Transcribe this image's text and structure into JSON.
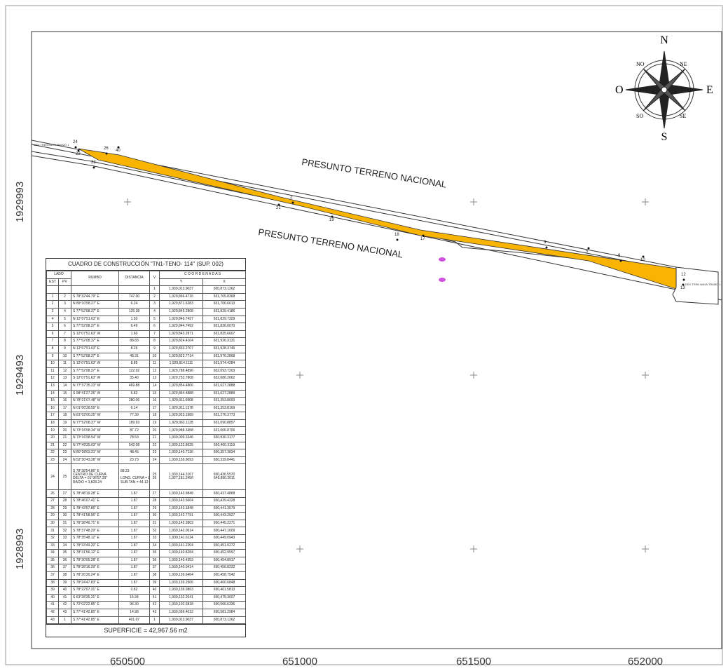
{
  "map": {
    "x_labels": [
      "650500",
      "651000",
      "651500",
      "652000"
    ],
    "y_labels": [
      "1929993",
      "1929493",
      "1928993"
    ],
    "area_labels": [
      "PRESUNTO TERRENO NACIONAL",
      "PRESUNTO TERRENO NACIONAL"
    ],
    "end_labels": [
      "DEV TREN MAYA TRAMO 1",
      "DEV TREN MAYA TRAMO 1"
    ],
    "vertex_labels": [
      "24",
      "23",
      "26",
      "40",
      "22",
      "21",
      "2",
      "19",
      "18",
      "17",
      "3",
      "5",
      "9",
      "10",
      "12",
      "13"
    ],
    "compass": {
      "n": "N",
      "s": "S",
      "e": "E",
      "o": "O",
      "ne": "NE",
      "no": "NO",
      "se": "SE",
      "so": "SO"
    }
  },
  "table": {
    "title": "CUADRO DE CONSTRUCCIÓN \"TN1-TENO- 114\" (SUP. 002)",
    "lado": "LADO",
    "est": "EST",
    "pv": "PV",
    "rumbo": "RUMBO",
    "distancia": "DISTANCIA",
    "v": "V",
    "coordenadas": "C O O R D E N A D A S",
    "y": "Y",
    "x": "X",
    "rows": [
      [
        "",
        "",
        "",
        "",
        "1",
        "1,930,013.9037",
        "650,873.1262"
      ],
      [
        "1",
        "2",
        "S 78°32'44.79\" E",
        "747.00",
        "2",
        "1,929,866.4716",
        "651,705.8368"
      ],
      [
        "2",
        "3",
        "N 89°10'58.27\" E",
        "6.24",
        "3",
        "1,929,871.6283",
        "651,706.6613"
      ],
      [
        "3",
        "4",
        "S 77°52'08.37\" E",
        "125.38",
        "4",
        "1,929,845.2808",
        "651,829.4186"
      ],
      [
        "4",
        "5",
        "N 12°07'51.63\" E",
        "1.50",
        "5",
        "1,929,846.7427",
        "651,829.7329"
      ],
      [
        "5",
        "6",
        "S 77°52'08.37\" E",
        "6.49",
        "6",
        "1,929,844.7492",
        "651,836.0070"
      ],
      [
        "6",
        "7",
        "S 12°07'51.63\" W",
        "1.60",
        "7",
        "1,929,843.2871",
        "651,835.6607"
      ],
      [
        "7",
        "8",
        "S 77°52'08.37\" E",
        "88.83",
        "8",
        "1,929,824.4104",
        "651,926.3131"
      ],
      [
        "8",
        "9",
        "N 12°07'51.63\" E",
        "8.26",
        "9",
        "1,929,833.2707",
        "651,928.3746"
      ],
      [
        "9",
        "10",
        "S 77°52'08.37\" E",
        "48.31",
        "10",
        "1,929,822.7714",
        "651,976.2868"
      ],
      [
        "10",
        "11",
        "S 12°07'51.63\" W",
        "8.85",
        "11",
        "1,929,814.1111",
        "651,974.4284"
      ],
      [
        "11",
        "12",
        "S 77°52'08.37\" E",
        "122.02",
        "12",
        "1,929,788.4896",
        "652,093.7203"
      ],
      [
        "12",
        "13",
        "S 12°07'51.63\" W",
        "35.40",
        "13",
        "1,929,753.7808",
        "652,086.2062"
      ],
      [
        "13",
        "14",
        "N 77°37'35.23\" W",
        "469.88",
        "14",
        "1,929,854.4806",
        "651,627.2888"
      ],
      [
        "14",
        "15",
        "S 08°41'27.26\" W",
        "6.82",
        "15",
        "1,929,854.4888",
        "651,627.2889"
      ],
      [
        "15",
        "16",
        "N 78°21'07.48\" W",
        "280.06",
        "16",
        "1,929,911.0808",
        "651,353.8000"
      ],
      [
        "16",
        "17",
        "N 01°00'28.59\" E",
        "6.14",
        "17",
        "1,929,911.1378",
        "651,353.8169"
      ],
      [
        "17",
        "18",
        "N 81°02'00.25\" W",
        "77.39",
        "18",
        "1,929,923.1989",
        "651,276.3773"
      ],
      [
        "18",
        "19",
        "N 77°52'08.37\" W",
        "189.93",
        "19",
        "1,929,963.1128",
        "651,090.8857"
      ],
      [
        "19",
        "20",
        "N 73°16'58.34\" W",
        "87.72",
        "20",
        "1,929,988.3458",
        "651,006.8706"
      ],
      [
        "20",
        "21",
        "N 73°16'58.54\" W",
        "78.53",
        "21",
        "1,930,009.3346",
        "650,930.3177"
      ],
      [
        "21",
        "22",
        "N 77°49'25.03\" W",
        "542.08",
        "22",
        "1,930,122.8625",
        "650,400.3119"
      ],
      [
        "22",
        "23",
        "N 80°38'03.31\" W",
        "48.45",
        "23",
        "1,930,140.7136",
        "650,357.3834"
      ],
      [
        "23",
        "24",
        "N 52°30'43.28\" W",
        "23.73",
        "24",
        "1,930,159.9093",
        "650,339.8441"
      ],
      [
        "24",
        "25",
        [
          "S 78°38'54.86\" E",
          "CENTRO DE CURVA",
          "DELTA = 01°36'57.29\"",
          "RADIO = 3,828.24"
        ],
        [
          "88.23",
          "",
          "LONG. CURVA = 88.23",
          "SUB.TAN = 44.12"
        ],
        [
          "25",
          "26"
        ],
        [
          "1,930,144.3167",
          "1,927,181.2456"
        ],
        [
          "650,436.5570",
          "649,890.2011"
        ]
      ],
      [
        "26",
        "27",
        "S 78°48'19.28\" E",
        "1.87",
        "27",
        "1,930,143.9848",
        "650,437.4868"
      ],
      [
        "27",
        "28",
        "S 78°46'07.41\" E",
        "1.87",
        "28",
        "1,930,143.5604",
        "650,439.4228"
      ],
      [
        "28",
        "29",
        "S 78°43'57.86\" E",
        "1.87",
        "29",
        "1,930,143.1848",
        "650,441.3579"
      ],
      [
        "29",
        "30",
        "S 78°41'58.96\" E",
        "1.87",
        "30",
        "1,930,142.7791",
        "650,443.2927"
      ],
      [
        "30",
        "31",
        "S 78°38'46.71\" E",
        "1.87",
        "31",
        "1,930,142.3803",
        "650,445.2271"
      ],
      [
        "31",
        "32",
        "S 78°37'48.29\" E",
        "1.87",
        "32",
        "1,930,142.0614",
        "650,447.1609"
      ],
      [
        "32",
        "33",
        "S 78°35'48.12\" E",
        "1.87",
        "33",
        "1,930,141.6114",
        "650,449.0943"
      ],
      [
        "33",
        "34",
        "S 78°33'49.20\" E",
        "1.87",
        "34",
        "1,930,141.2204",
        "650,451.0272"
      ],
      [
        "34",
        "35",
        "S 78°31'56.12\" E",
        "1.87",
        "35",
        "1,930,140.8284",
        "650,452.9597"
      ],
      [
        "35",
        "36",
        "S 78°30'05.28\" E",
        "1.87",
        "36",
        "1,930,140.4353",
        "650,454.8917"
      ],
      [
        "36",
        "37",
        "S 78°28'16.29\" E",
        "1.87",
        "37",
        "1,930,140.0414",
        "650,456.8232"
      ],
      [
        "37",
        "38",
        "S 78°26'30.24\" E",
        "1.87",
        "38",
        "1,930,139.6464",
        "650,458.7542"
      ],
      [
        "38",
        "39",
        "S 78°24'47.83\" E",
        "1.87",
        "39",
        "1,930,139.2506",
        "650,460.6848"
      ],
      [
        "39",
        "40",
        "S 78°22'07.31\" E",
        "0.82",
        "40",
        "1,930,139.0863",
        "650,461.5813"
      ],
      [
        "40",
        "41",
        "S 63°28'35.31\" E",
        "15.34",
        "41",
        "1,930,132.2641",
        "650,475.3007"
      ],
      [
        "41",
        "42",
        "S 72°02'22.85\" E",
        "96.30",
        "42",
        "1,930,102.6818",
        "650,566.6336"
      ],
      [
        "42",
        "43",
        "S 77°41'42.85\" E",
        "14.98",
        "43",
        "1,930,099.4012",
        "650,581.2984"
      ],
      [
        "43",
        "1",
        "S 77°41'42.85\" E",
        "401.07",
        "1",
        "1,930,013.9037",
        "650,873.1262"
      ]
    ],
    "superficie": "SUPERFICIE = 42,967.56 m2"
  }
}
